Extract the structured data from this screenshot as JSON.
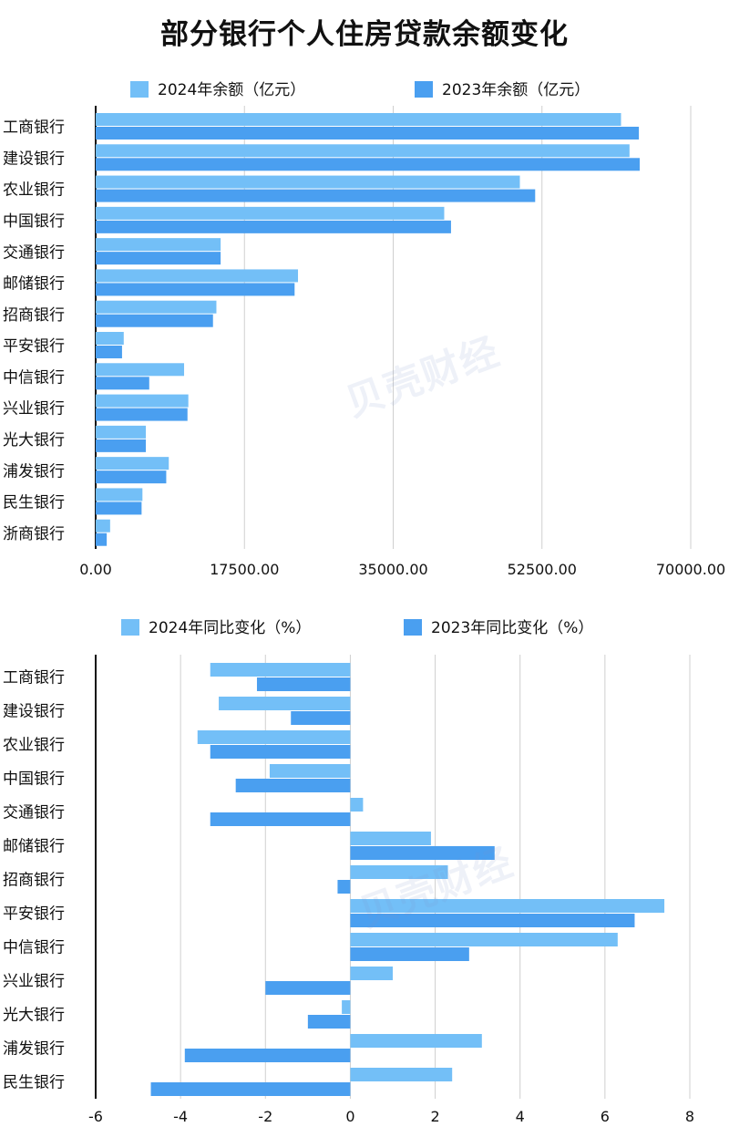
{
  "title": "部分银行个人住房贷款余额变化",
  "watermark": "贝壳财经",
  "colors": {
    "series2024": "#73bff7",
    "series2023": "#4a9ff0",
    "grid": "#cfcfcf",
    "axis": "#111111"
  },
  "chart_data": [
    {
      "type": "bar",
      "orientation": "horizontal",
      "categories": [
        "工商银行",
        "建设银行",
        "农业银行",
        "中国银行",
        "交通银行",
        "邮储银行",
        "招商银行",
        "平安银行",
        "中信银行",
        "兴业银行",
        "光大银行",
        "浦发银行",
        "民生银行",
        "浙商银行"
      ],
      "series": [
        {
          "name": "2024年余额（亿元）",
          "values": [
            61800,
            62800,
            49900,
            41000,
            14700,
            23800,
            14200,
            3300,
            10400,
            10900,
            5900,
            8600,
            5500,
            1700
          ]
        },
        {
          "name": "2023年余额（亿元）",
          "values": [
            63900,
            64000,
            51700,
            41800,
            14700,
            23400,
            13800,
            3100,
            6300,
            10800,
            5900,
            8300,
            5400,
            1300
          ]
        }
      ],
      "xlim": [
        0,
        70000
      ],
      "xticks": [
        "0.00",
        "17500.00",
        "35000.00",
        "52500.00",
        "70000.00"
      ],
      "xtick_values": [
        0,
        17500,
        35000,
        52500,
        70000
      ],
      "legend": "top",
      "grid": true
    },
    {
      "type": "bar",
      "orientation": "horizontal",
      "categories": [
        "工商银行",
        "建设银行",
        "农业银行",
        "中国银行",
        "交通银行",
        "邮储银行",
        "招商银行",
        "平安银行",
        "中信银行",
        "兴业银行",
        "光大银行",
        "浦发银行",
        "民生银行"
      ],
      "series": [
        {
          "name": "2024年同比变化（%）",
          "values": [
            -3.3,
            -3.1,
            -3.6,
            -1.9,
            0.3,
            1.9,
            2.3,
            7.4,
            6.3,
            1.0,
            -0.2,
            3.1,
            2.4
          ]
        },
        {
          "name": "2023年同比变化（%）",
          "values": [
            -2.2,
            -1.4,
            -3.3,
            -2.7,
            -3.3,
            3.4,
            -0.3,
            6.7,
            2.8,
            -2.0,
            -1.0,
            -3.9,
            -4.7
          ]
        }
      ],
      "xlim": [
        -6,
        8
      ],
      "xticks": [
        "-6",
        "-4",
        "-2",
        "0",
        "2",
        "4",
        "6",
        "8"
      ],
      "xtick_values": [
        -6,
        -4,
        -2,
        0,
        2,
        4,
        6,
        8
      ],
      "legend": "top",
      "grid": true
    }
  ]
}
